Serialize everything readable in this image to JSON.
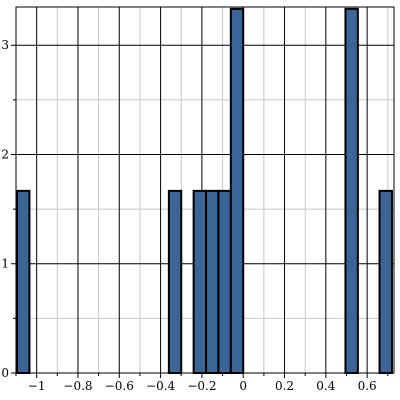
{
  "chart_data": {
    "type": "bar",
    "title": "",
    "xlabel": "",
    "ylabel": "",
    "xlim": [
      -1.1,
      0.73
    ],
    "ylim": [
      0,
      3.35
    ],
    "grid": true,
    "bar_color": "#3a6596",
    "bar_edge_color": "#000000",
    "bins": [
      {
        "x0": -1.095,
        "x1": -1.035,
        "value": 1.667
      },
      {
        "x0": -0.36,
        "x1": -0.3,
        "value": 1.667
      },
      {
        "x0": -0.24,
        "x1": -0.18,
        "value": 1.667
      },
      {
        "x0": -0.18,
        "x1": -0.12,
        "value": 1.667
      },
      {
        "x0": -0.12,
        "x1": -0.06,
        "value": 1.667
      },
      {
        "x0": -0.06,
        "x1": 0.0,
        "value": 3.333
      },
      {
        "x0": 0.495,
        "x1": 0.555,
        "value": 3.333
      },
      {
        "x0": 0.66,
        "x1": 0.72,
        "value": 1.667
      }
    ],
    "x_ticks_major": [
      -1,
      -0.8,
      -0.6,
      -0.4,
      -0.2,
      0,
      0.2,
      0.4,
      0.6
    ],
    "x_tick_labels": [
      "−1",
      "−0.8",
      "−0.6",
      "−0.4",
      "−0.2",
      "0",
      "0.2",
      "0.4",
      "0.6"
    ],
    "x_ticks_minor": [
      -1.1,
      -0.9,
      -0.7,
      -0.5,
      -0.3,
      -0.1,
      0.1,
      0.3,
      0.5,
      0.7
    ],
    "y_ticks_major": [
      0,
      1,
      2,
      3
    ],
    "y_tick_labels": [
      "0",
      "1",
      "2",
      "3"
    ],
    "y_ticks_minor": [
      0.5,
      1.5,
      2.5
    ]
  }
}
